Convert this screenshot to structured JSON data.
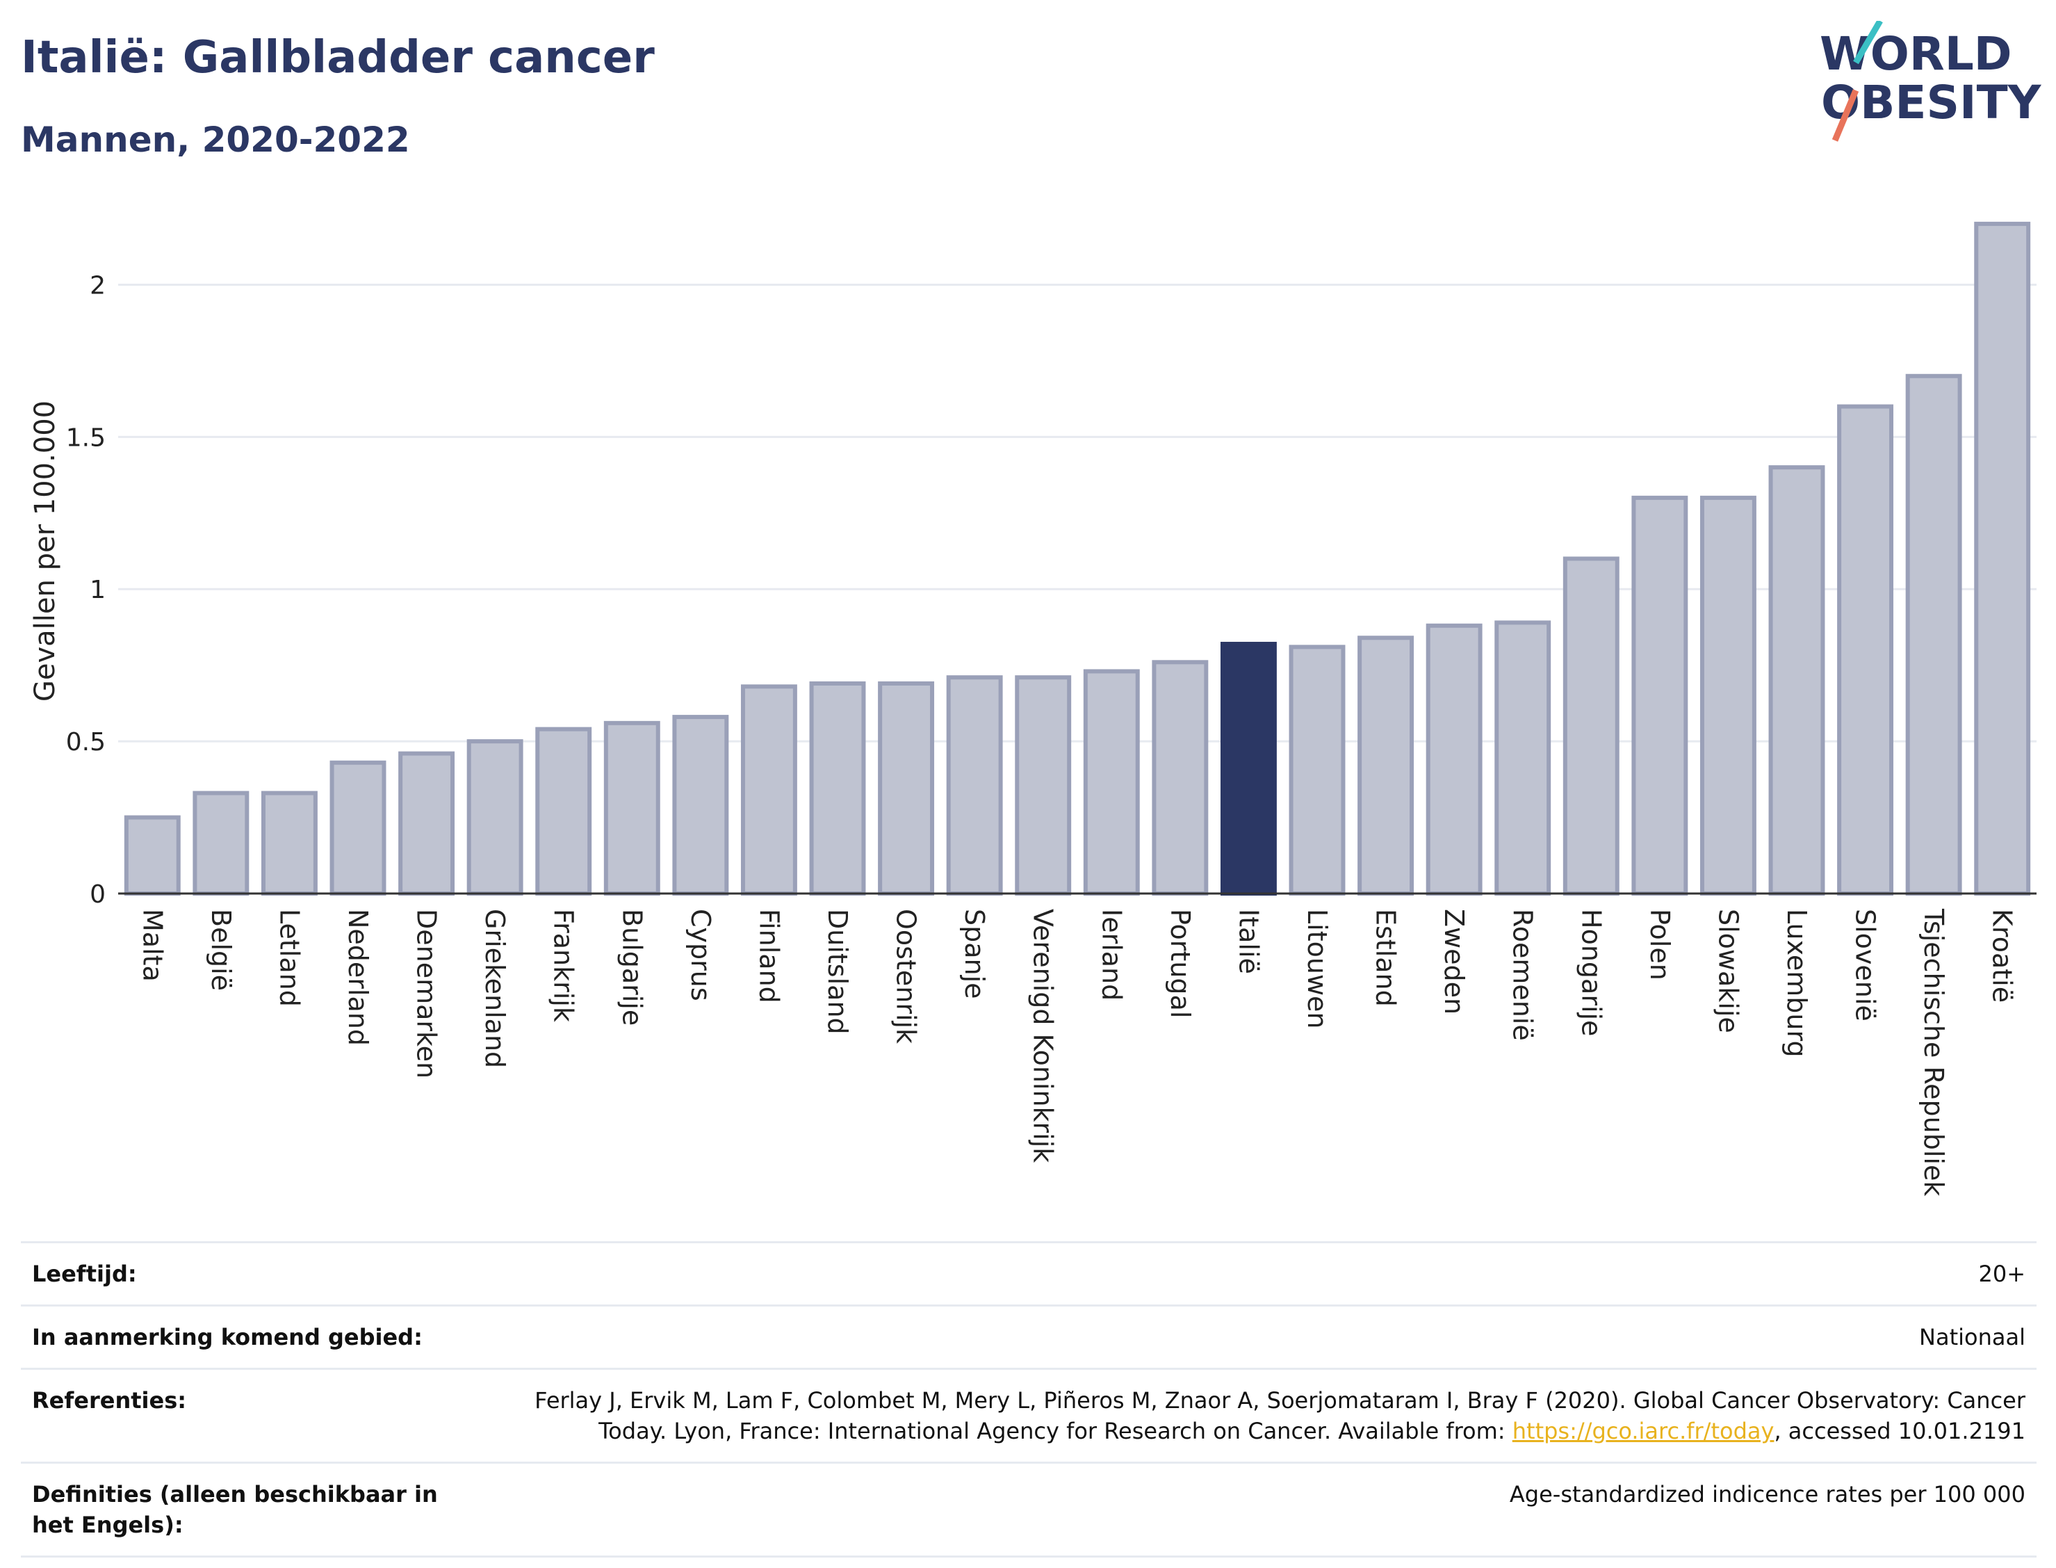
{
  "header": {
    "title": "Italië: Gallbladder cancer",
    "subtitle": "Mannen, 2020-2022"
  },
  "logo": {
    "line1": "WORLD",
    "line2": "OBESITY",
    "accent_colors": [
      "#3bbfc4",
      "#e8735a"
    ]
  },
  "colors": {
    "bar": "#bfc3d1",
    "bar_border": "#9aa0b8",
    "highlight": "#2b3764",
    "grid": "#e7eaf0",
    "axis": "#333333"
  },
  "chart_data": {
    "type": "bar",
    "title": "Italië: Gallbladder cancer",
    "subtitle": "Mannen, 2020-2022",
    "ylabel": "Gevallen per 100.000",
    "xlabel": "",
    "ylim": [
      0,
      2.25
    ],
    "yticks": [
      0,
      0.5,
      1,
      1.5,
      2
    ],
    "ytick_labels": [
      "0",
      "0.5",
      "1",
      "1.5",
      "2"
    ],
    "grid": true,
    "highlight": "Italië",
    "categories": [
      "Malta",
      "België",
      "Letland",
      "Nederland",
      "Denemarken",
      "Griekenland",
      "Frankrijk",
      "Bulgarije",
      "Cyprus",
      "Finland",
      "Duitsland",
      "Oostenrijk",
      "Spanje",
      "Verenigd Koninkrijk",
      "Ierland",
      "Portugal",
      "Italië",
      "Litouwen",
      "Estland",
      "Zweden",
      "Roemenië",
      "Hongarije",
      "Polen",
      "Slowakije",
      "Luxemburg",
      "Slovenië",
      "Tsjechische Republiek",
      "Kroatië"
    ],
    "values": [
      0.25,
      0.33,
      0.33,
      0.43,
      0.46,
      0.5,
      0.54,
      0.56,
      0.58,
      0.68,
      0.69,
      0.69,
      0.71,
      0.71,
      0.73,
      0.76,
      0.82,
      0.81,
      0.84,
      0.88,
      0.89,
      1.1,
      1.3,
      1.3,
      1.4,
      1.6,
      1.7,
      2.2
    ]
  },
  "info": {
    "rows": [
      {
        "key": "Leeftijd:",
        "value": "20+"
      },
      {
        "key": "In aanmerking komend gebied:",
        "value": "Nationaal"
      },
      {
        "key": "Referenties:",
        "value": "Ferlay J, Ervik M, Lam F, Colombet M, Mery L, Piñeros M, Znaor A, Soerjomataram I, Bray F (2020). Global Cancer Observatory: Cancer Today. Lyon, France: International Agency for Research on Cancer. Available from: ",
        "link": "https://gco.iarc.fr/today",
        "suffix": ", accessed 10.01.2191"
      },
      {
        "key": "Definities (alleen beschikbaar in het Engels):",
        "value": "Age-standardized indicence rates per 100 000"
      }
    ]
  }
}
